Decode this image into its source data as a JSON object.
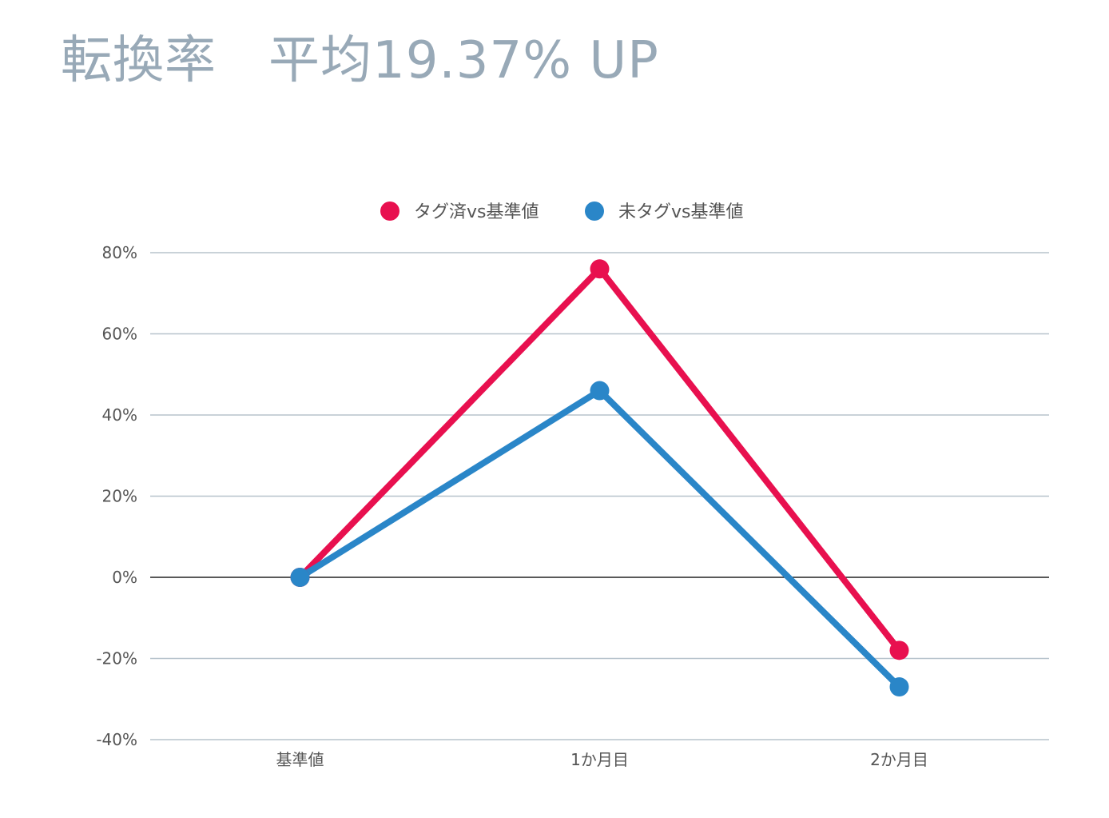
{
  "title": "転換率　平均19.37% UP",
  "chart_data": {
    "type": "line",
    "title": "転換率　平均19.37% UP",
    "categories": [
      "基準値",
      "1か月目",
      "2か月目"
    ],
    "series": [
      {
        "name": "タグ済vs基準値",
        "values": [
          0,
          76,
          -18
        ],
        "color": "#e8104f"
      },
      {
        "name": "未タグvs基準値",
        "values": [
          0,
          46,
          -27
        ],
        "color": "#2a86c8"
      }
    ],
    "ylim": [
      -40,
      80
    ],
    "yticks": [
      80,
      60,
      40,
      20,
      0,
      -20,
      -40
    ],
    "ytick_suffix": "%",
    "xlabel": "",
    "ylabel": "",
    "grid": true,
    "legend": "top-center",
    "gridline_color": "#b7c3cc",
    "zeroline_color": "#222222"
  }
}
